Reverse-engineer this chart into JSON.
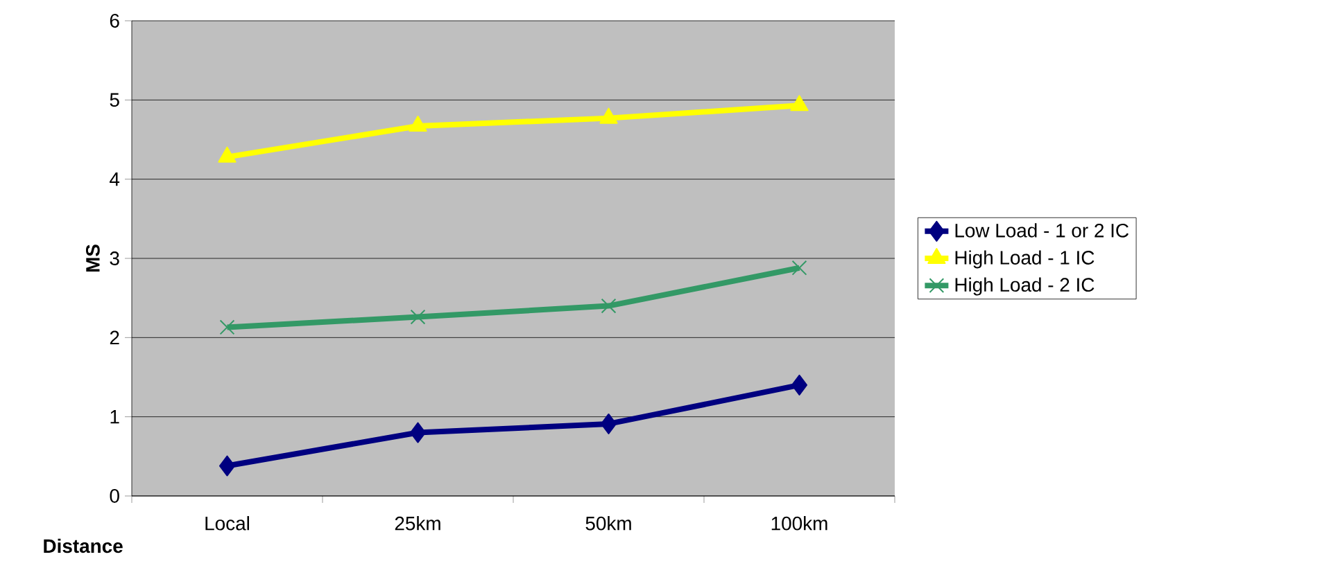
{
  "chart_data": {
    "type": "line",
    "xlabel": "Distance",
    "ylabel": "MS",
    "categories": [
      "Local",
      "25km",
      "50km",
      "100km"
    ],
    "series": [
      {
        "name": "Low Load - 1 or 2 IC",
        "color": "#000080",
        "marker": "diamond",
        "values": [
          0.38,
          0.8,
          0.91,
          1.4
        ]
      },
      {
        "name": "High Load - 1 IC",
        "color": "#ffff00",
        "marker": "triangle",
        "values": [
          4.28,
          4.67,
          4.77,
          4.93
        ]
      },
      {
        "name": "High Load - 2 IC",
        "color": "#339966",
        "marker": "cross",
        "values": [
          2.13,
          2.26,
          2.4,
          2.88
        ]
      }
    ],
    "ylim": [
      0,
      6
    ],
    "yticks": [
      0,
      1,
      2,
      3,
      4,
      5,
      6
    ],
    "grid": "y",
    "legend": "right",
    "line_style": "solid"
  }
}
